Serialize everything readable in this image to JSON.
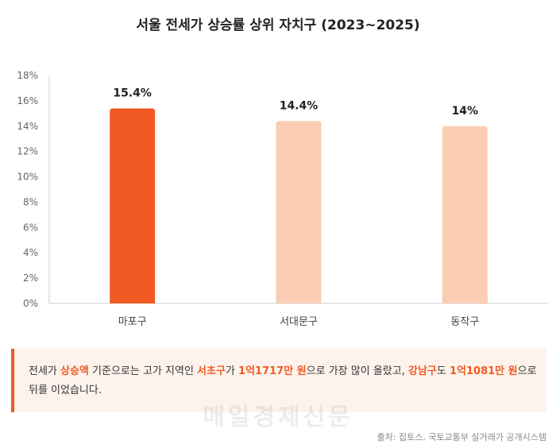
{
  "chart_data": {
    "type": "bar",
    "title": "서울 전세가 상승률 상위 자치구 (2023~2025)",
    "categories": [
      "마포구",
      "서대문구",
      "동작구"
    ],
    "values": [
      15.4,
      14.4,
      14
    ],
    "value_labels": [
      "15.4%",
      "14.4%",
      "14%"
    ],
    "bar_colors": [
      "#f05a22",
      "#fbcdb3",
      "#fbcdb3"
    ],
    "y_ticks": [
      "0%",
      "2%",
      "4%",
      "6%",
      "8%",
      "10%",
      "12%",
      "14%",
      "16%",
      "18%"
    ],
    "ylim": [
      0,
      18
    ],
    "grid": false,
    "xlabel": "",
    "ylabel": ""
  },
  "note": {
    "parts": [
      {
        "text": "전세가 ",
        "highlight": false
      },
      {
        "text": "상승액",
        "highlight": true
      },
      {
        "text": " 기준으로는 고가 지역인 ",
        "highlight": false
      },
      {
        "text": "서초구",
        "highlight": true
      },
      {
        "text": "가 ",
        "highlight": false
      },
      {
        "text": "1억1717만 원",
        "highlight": true
      },
      {
        "text": "으로 가장 많이 올랐고, ",
        "highlight": false
      },
      {
        "text": "강남구",
        "highlight": true
      },
      {
        "text": "도 ",
        "highlight": false
      },
      {
        "text": "1억1081만 원",
        "highlight": true
      },
      {
        "text": "으로 뒤를 이었습니다.",
        "highlight": false
      }
    ]
  },
  "watermark": "매일경제신문",
  "source": "출처: 집토스, 국토교통부 실거래가 공개시스템"
}
